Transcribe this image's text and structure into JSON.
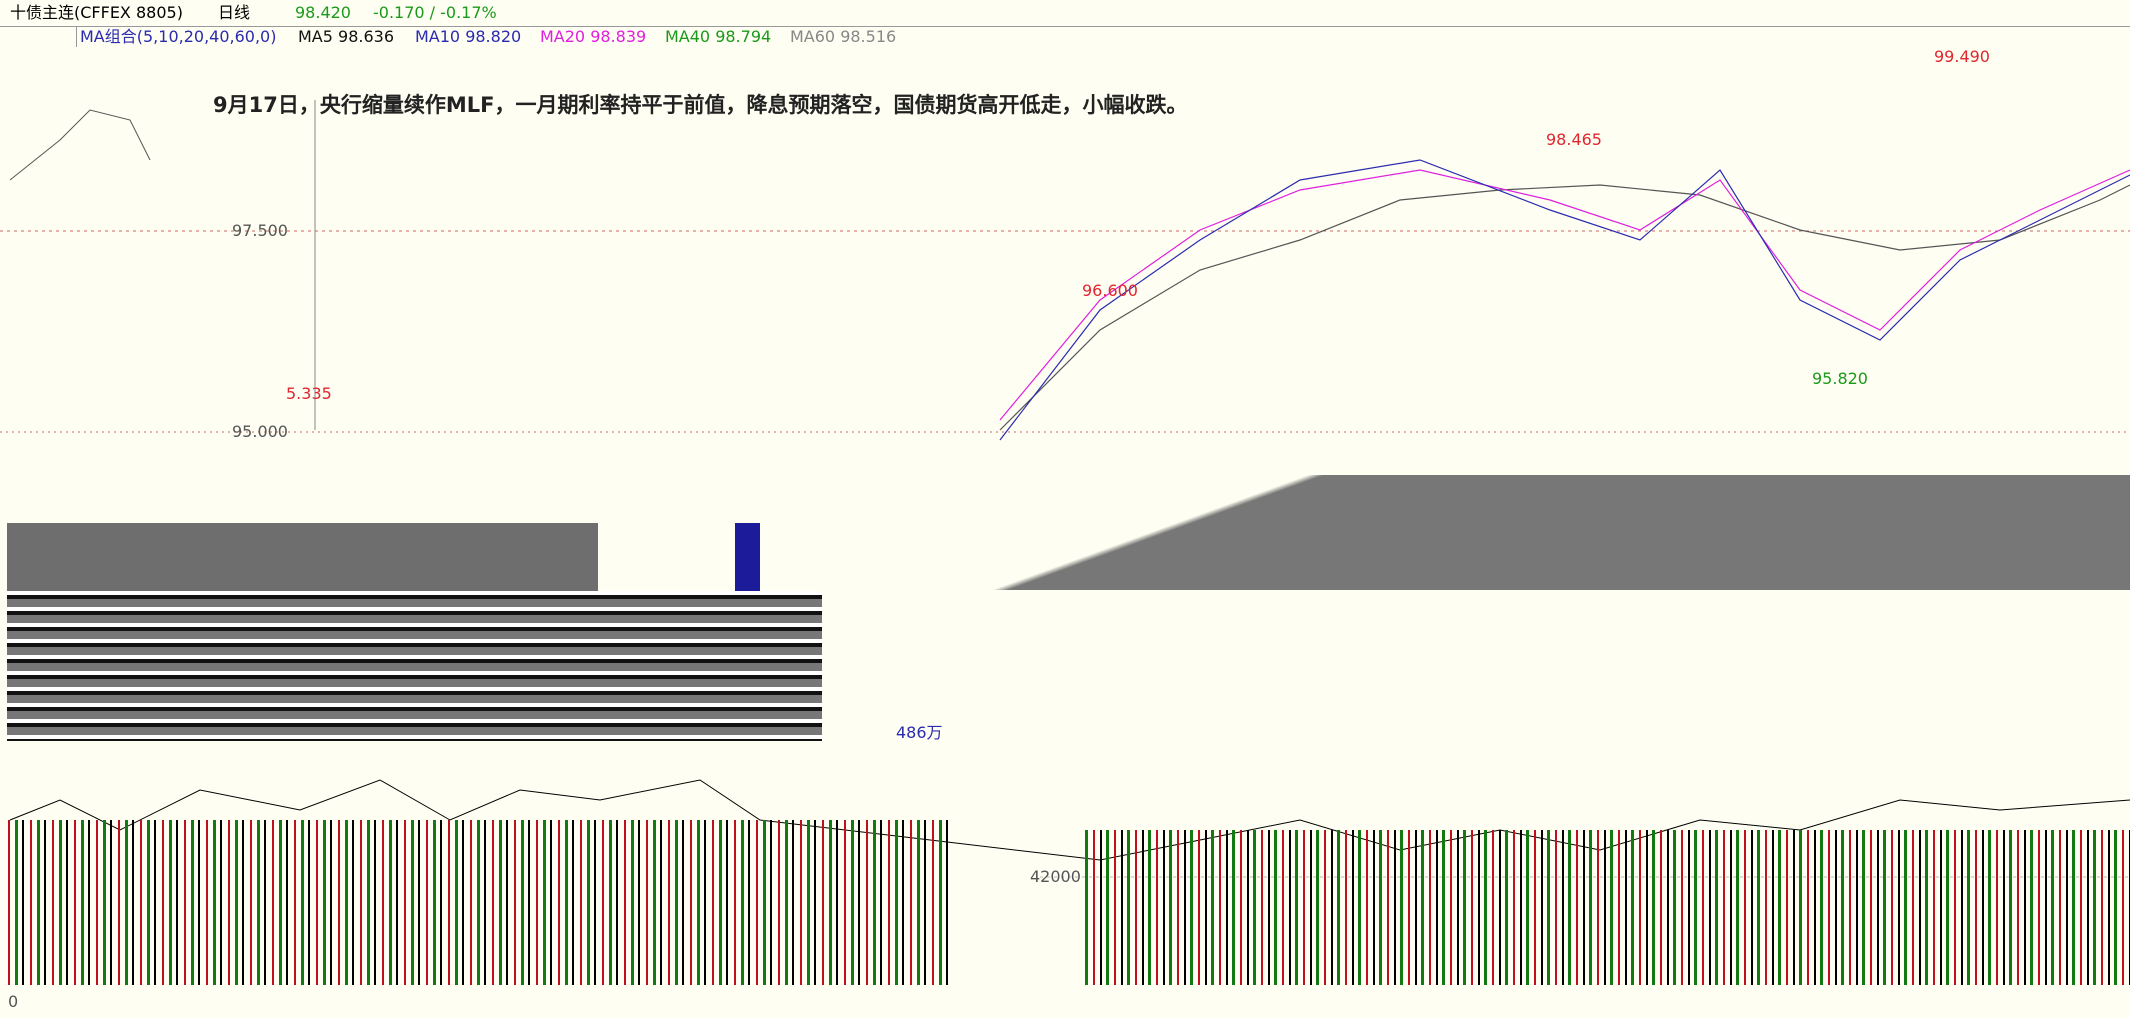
{
  "header": {
    "symbol": "十债主连(CFFEX 8805)",
    "period": "日线",
    "last": "98.420",
    "change": "-0.170 / -0.17%"
  },
  "indicators": {
    "group": "MA组合(5,10,20,40,60,0)",
    "ma5": "MA5 98.636",
    "ma10": "MA10 98.820",
    "ma20": "MA20 98.839",
    "ma40": "MA40 98.794",
    "ma60": "MA60 98.516"
  },
  "price_labels": {
    "high": "99.490",
    "peak2": "98.465",
    "peak1": "96.600",
    "low": "95.820",
    "left": "5.335"
  },
  "axis_labels": {
    "y1": "97.500",
    "y2": "95.000",
    "volume": "42000",
    "volume_unit": "486万",
    "origin": "0"
  },
  "annotation": "9月17日，央行缩量续作MLF，一月期利率持平于前值，降息预期落空，国债期货高开低走，小幅收跌。"
}
